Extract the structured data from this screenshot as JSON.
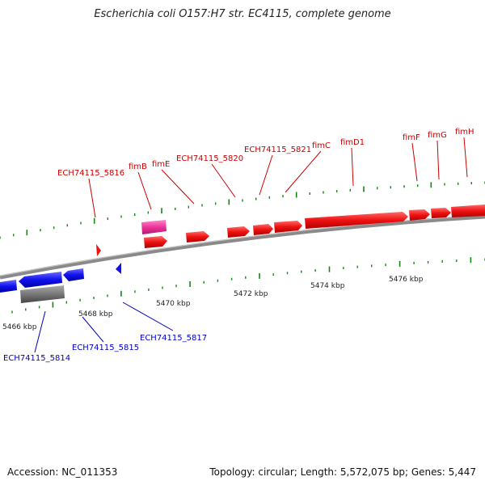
{
  "title": "Escherichia coli O157:H7 str. EC4115, complete genome",
  "footer": {
    "accession": "Accession: NC_011353",
    "info": "Topology: circular; Length: 5,572,075 bp; Genes: 5,447"
  },
  "colors": {
    "forward_gene": "#ee1111",
    "reverse_gene": "#1111ee",
    "forward_label": "#cc0000",
    "reverse_label": "#0000bb",
    "pink_feature": "#ee3399",
    "gray_feature": "#777777",
    "axis": "#888888",
    "tick": "#118811"
  },
  "ticks": [
    {
      "label": "5466 kbp"
    },
    {
      "label": "5468 kbp"
    },
    {
      "label": "5470 kbp"
    },
    {
      "label": "5472 kbp"
    },
    {
      "label": "5474 kbp"
    },
    {
      "label": "5476 kbp"
    }
  ],
  "forward_labels": [
    {
      "name": "ECH74115_5816"
    },
    {
      "name": "fimB"
    },
    {
      "name": "fimE"
    },
    {
      "name": "ECH74115_5820"
    },
    {
      "name": "ECH74115_5821"
    },
    {
      "name": "fimC"
    },
    {
      "name": "fimD1"
    },
    {
      "name": "fimF"
    },
    {
      "name": "fimG"
    },
    {
      "name": "fimH"
    }
  ],
  "reverse_labels": [
    {
      "name": "ECH74115_5814"
    },
    {
      "name": "ECH74115_5815"
    },
    {
      "name": "ECH74115_5817"
    }
  ]
}
